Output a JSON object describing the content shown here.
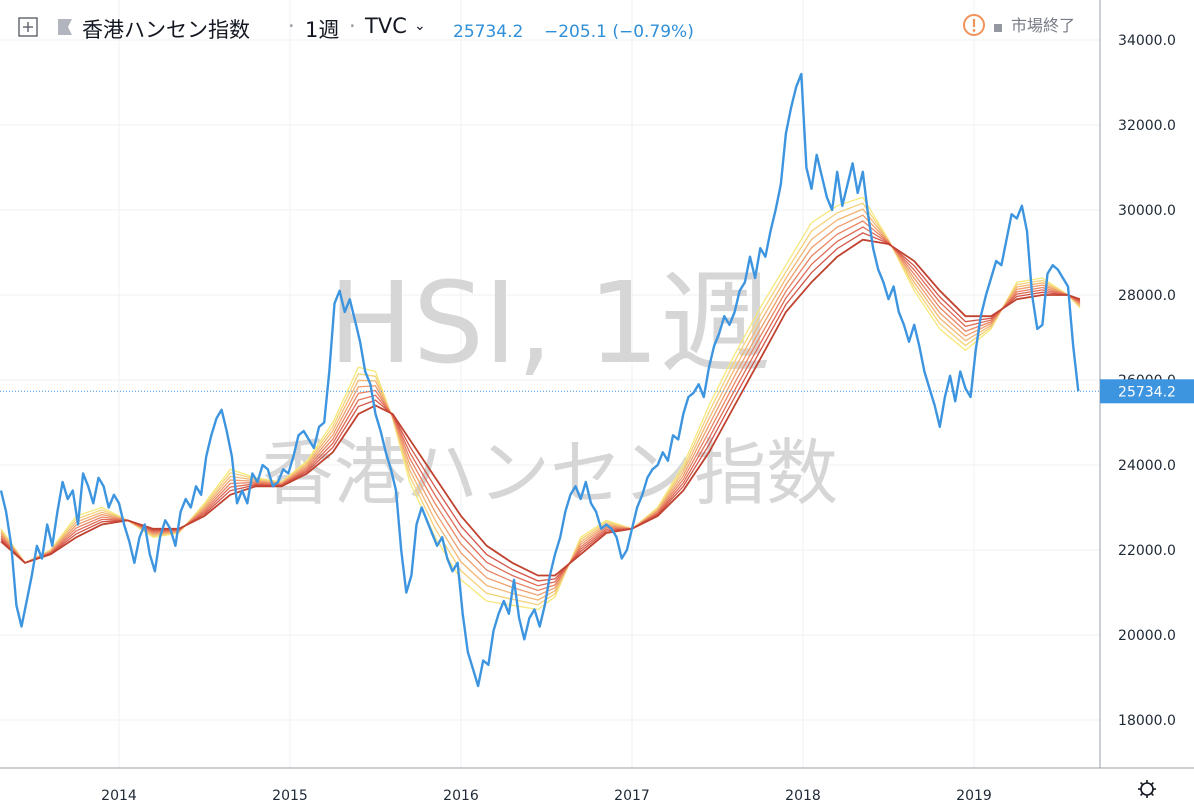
{
  "header": {
    "symbol_name": "香港ハンセン指数",
    "interval": "1週",
    "exchange": "TVC",
    "last_price": "25734.2",
    "change": "−205.1 (−0.79%)",
    "market_status": "市場終了",
    "colors": {
      "price": "#2f8fd9",
      "status_warn": "#f0925a"
    }
  },
  "watermark": {
    "line1": "HSI, 1週",
    "line2": "香港ハンセン指数"
  },
  "price_axis": {
    "labels": [
      "34000.0",
      "32000.0",
      "30000.0",
      "28000.0",
      "26000.0",
      "24000.0",
      "22000.0",
      "20000.0",
      "18000.0"
    ],
    "last_price_label": "25734.2"
  },
  "time_axis": {
    "labels": [
      "2014",
      "2015",
      "2016",
      "2017",
      "2018",
      "2019"
    ]
  },
  "chart_data": {
    "type": "line",
    "title": "",
    "xlabel": "",
    "ylabel": "",
    "ylim": [
      17000,
      35000
    ],
    "x_range": [
      "2013.31",
      "2019.66"
    ],
    "grid": true,
    "last_value": 25734.2,
    "series": [
      {
        "color": "#3d95e0",
        "points": [
          [
            2013.31,
            23400
          ],
          [
            2013.34,
            22900
          ],
          [
            2013.37,
            22100
          ],
          [
            2013.4,
            20700
          ],
          [
            2013.43,
            20200
          ],
          [
            2013.46,
            20800
          ],
          [
            2013.49,
            21400
          ],
          [
            2013.52,
            22100
          ],
          [
            2013.55,
            21800
          ],
          [
            2013.58,
            22600
          ],
          [
            2013.61,
            22100
          ],
          [
            2013.64,
            22900
          ],
          [
            2013.67,
            23600
          ],
          [
            2013.7,
            23200
          ],
          [
            2013.73,
            23400
          ],
          [
            2013.76,
            22600
          ],
          [
            2013.79,
            23800
          ],
          [
            2013.82,
            23500
          ],
          [
            2013.85,
            23100
          ],
          [
            2013.88,
            23700
          ],
          [
            2013.91,
            23500
          ],
          [
            2013.94,
            23000
          ],
          [
            2013.97,
            23300
          ],
          [
            2014.0,
            23100
          ],
          [
            2014.03,
            22600
          ],
          [
            2014.06,
            22200
          ],
          [
            2014.09,
            21700
          ],
          [
            2014.12,
            22300
          ],
          [
            2014.15,
            22600
          ],
          [
            2014.18,
            21900
          ],
          [
            2014.21,
            21500
          ],
          [
            2014.24,
            22300
          ],
          [
            2014.27,
            22700
          ],
          [
            2014.3,
            22500
          ],
          [
            2014.33,
            22100
          ],
          [
            2014.36,
            22900
          ],
          [
            2014.39,
            23200
          ],
          [
            2014.42,
            23000
          ],
          [
            2014.45,
            23500
          ],
          [
            2014.48,
            23300
          ],
          [
            2014.51,
            24200
          ],
          [
            2014.54,
            24700
          ],
          [
            2014.57,
            25100
          ],
          [
            2014.6,
            25300
          ],
          [
            2014.63,
            24800
          ],
          [
            2014.66,
            24200
          ],
          [
            2014.69,
            23100
          ],
          [
            2014.72,
            23400
          ],
          [
            2014.75,
            23100
          ],
          [
            2014.78,
            23800
          ],
          [
            2014.81,
            23600
          ],
          [
            2014.84,
            24000
          ],
          [
            2014.87,
            23900
          ],
          [
            2014.9,
            23500
          ],
          [
            2014.93,
            23600
          ],
          [
            2014.96,
            23900
          ],
          [
            2014.99,
            23800
          ],
          [
            2015.02,
            24200
          ],
          [
            2015.05,
            24700
          ],
          [
            2015.08,
            24800
          ],
          [
            2015.11,
            24600
          ],
          [
            2015.14,
            24400
          ],
          [
            2015.17,
            24900
          ],
          [
            2015.2,
            25000
          ],
          [
            2015.23,
            26200
          ],
          [
            2015.26,
            27800
          ],
          [
            2015.29,
            28100
          ],
          [
            2015.32,
            27600
          ],
          [
            2015.35,
            27900
          ],
          [
            2015.38,
            27400
          ],
          [
            2015.41,
            26900
          ],
          [
            2015.44,
            26200
          ],
          [
            2015.47,
            25900
          ],
          [
            2015.5,
            25200
          ],
          [
            2015.53,
            24800
          ],
          [
            2015.56,
            24300
          ],
          [
            2015.59,
            23900
          ],
          [
            2015.62,
            23400
          ],
          [
            2015.65,
            22000
          ],
          [
            2015.68,
            21000
          ],
          [
            2015.71,
            21400
          ],
          [
            2015.74,
            22600
          ],
          [
            2015.77,
            23000
          ],
          [
            2015.8,
            22700
          ],
          [
            2015.83,
            22400
          ],
          [
            2015.86,
            22100
          ],
          [
            2015.89,
            22300
          ],
          [
            2015.92,
            21800
          ],
          [
            2015.95,
            21500
          ],
          [
            2015.98,
            21700
          ],
          [
            2016.01,
            20500
          ],
          [
            2016.04,
            19600
          ],
          [
            2016.07,
            19200
          ],
          [
            2016.1,
            18800
          ],
          [
            2016.13,
            19400
          ],
          [
            2016.16,
            19300
          ],
          [
            2016.19,
            20100
          ],
          [
            2016.22,
            20500
          ],
          [
            2016.25,
            20800
          ],
          [
            2016.28,
            20500
          ],
          [
            2016.31,
            21300
          ],
          [
            2016.34,
            20400
          ],
          [
            2016.37,
            19900
          ],
          [
            2016.4,
            20400
          ],
          [
            2016.43,
            20600
          ],
          [
            2016.46,
            20200
          ],
          [
            2016.49,
            20700
          ],
          [
            2016.52,
            21400
          ],
          [
            2016.55,
            21900
          ],
          [
            2016.58,
            22300
          ],
          [
            2016.61,
            22900
          ],
          [
            2016.64,
            23300
          ],
          [
            2016.67,
            23500
          ],
          [
            2016.7,
            23200
          ],
          [
            2016.73,
            23600
          ],
          [
            2016.76,
            23100
          ],
          [
            2016.79,
            22900
          ],
          [
            2016.82,
            22500
          ],
          [
            2016.85,
            22600
          ],
          [
            2016.88,
            22500
          ],
          [
            2016.91,
            22300
          ],
          [
            2016.94,
            21800
          ],
          [
            2016.97,
            22000
          ],
          [
            2017.0,
            22500
          ],
          [
            2017.03,
            23000
          ],
          [
            2017.06,
            23300
          ],
          [
            2017.09,
            23700
          ],
          [
            2017.12,
            23900
          ],
          [
            2017.15,
            24000
          ],
          [
            2017.18,
            24300
          ],
          [
            2017.21,
            24100
          ],
          [
            2017.24,
            24700
          ],
          [
            2017.27,
            24600
          ],
          [
            2017.3,
            25200
          ],
          [
            2017.33,
            25600
          ],
          [
            2017.36,
            25700
          ],
          [
            2017.39,
            25900
          ],
          [
            2017.42,
            25600
          ],
          [
            2017.45,
            26300
          ],
          [
            2017.48,
            26800
          ],
          [
            2017.51,
            27100
          ],
          [
            2017.54,
            27500
          ],
          [
            2017.57,
            27300
          ],
          [
            2017.6,
            27600
          ],
          [
            2017.63,
            28100
          ],
          [
            2017.66,
            28300
          ],
          [
            2017.69,
            28900
          ],
          [
            2017.72,
            28400
          ],
          [
            2017.75,
            29100
          ],
          [
            2017.78,
            28900
          ],
          [
            2017.81,
            29500
          ],
          [
            2017.84,
            30000
          ],
          [
            2017.87,
            30600
          ],
          [
            2017.9,
            31800
          ],
          [
            2017.93,
            32400
          ],
          [
            2017.96,
            32900
          ],
          [
            2017.99,
            33200
          ],
          [
            2018.02,
            31000
          ],
          [
            2018.05,
            30500
          ],
          [
            2018.08,
            31300
          ],
          [
            2018.11,
            30800
          ],
          [
            2018.14,
            30300
          ],
          [
            2018.17,
            30000
          ],
          [
            2018.2,
            30900
          ],
          [
            2018.23,
            30100
          ],
          [
            2018.26,
            30600
          ],
          [
            2018.29,
            31100
          ],
          [
            2018.32,
            30400
          ],
          [
            2018.35,
            30900
          ],
          [
            2018.38,
            29900
          ],
          [
            2018.41,
            29100
          ],
          [
            2018.44,
            28600
          ],
          [
            2018.47,
            28300
          ],
          [
            2018.5,
            27900
          ],
          [
            2018.53,
            28200
          ],
          [
            2018.56,
            27600
          ],
          [
            2018.59,
            27300
          ],
          [
            2018.62,
            26900
          ],
          [
            2018.65,
            27300
          ],
          [
            2018.68,
            26800
          ],
          [
            2018.71,
            26200
          ],
          [
            2018.74,
            25800
          ],
          [
            2018.77,
            25400
          ],
          [
            2018.8,
            24900
          ],
          [
            2018.83,
            25600
          ],
          [
            2018.86,
            26100
          ],
          [
            2018.89,
            25500
          ],
          [
            2018.92,
            26200
          ],
          [
            2018.95,
            25800
          ],
          [
            2018.98,
            25600
          ],
          [
            2019.01,
            26700
          ],
          [
            2019.04,
            27500
          ],
          [
            2019.07,
            28000
          ],
          [
            2019.1,
            28400
          ],
          [
            2019.13,
            28800
          ],
          [
            2019.16,
            28700
          ],
          [
            2019.19,
            29300
          ],
          [
            2019.22,
            29900
          ],
          [
            2019.25,
            29800
          ],
          [
            2019.28,
            30100
          ],
          [
            2019.31,
            29500
          ],
          [
            2019.34,
            28000
          ],
          [
            2019.37,
            27200
          ],
          [
            2019.4,
            27300
          ],
          [
            2019.43,
            28500
          ],
          [
            2019.46,
            28700
          ],
          [
            2019.49,
            28600
          ],
          [
            2019.52,
            28400
          ],
          [
            2019.55,
            28200
          ],
          [
            2019.58,
            26800
          ],
          [
            2019.61,
            25734.2
          ]
        ]
      }
    ],
    "ribbon": {
      "colors": [
        "#f6e87a",
        "#f5d178",
        "#f2b774",
        "#ee9e6c",
        "#e98463",
        "#e06b57",
        "#d45548",
        "#c0422f"
      ],
      "offsets": [
        1.0,
        0.86,
        0.72,
        0.58,
        0.44,
        0.3,
        0.16,
        0.0
      ],
      "core": [
        [
          2013.31,
          22200
        ],
        [
          2013.45,
          21700
        ],
        [
          2013.6,
          21900
        ],
        [
          2013.75,
          22300
        ],
        [
          2013.9,
          22600
        ],
        [
          2014.05,
          22700
        ],
        [
          2014.2,
          22500
        ],
        [
          2014.35,
          22500
        ],
        [
          2014.5,
          22800
        ],
        [
          2014.65,
          23300
        ],
        [
          2014.8,
          23500
        ],
        [
          2014.95,
          23500
        ],
        [
          2015.1,
          23800
        ],
        [
          2015.25,
          24300
        ],
        [
          2015.4,
          25200
        ],
        [
          2015.5,
          25400
        ],
        [
          2015.6,
          25200
        ],
        [
          2015.7,
          24600
        ],
        [
          2015.85,
          23700
        ],
        [
          2016.0,
          22800
        ],
        [
          2016.15,
          22100
        ],
        [
          2016.3,
          21700
        ],
        [
          2016.45,
          21400
        ],
        [
          2016.55,
          21400
        ],
        [
          2016.7,
          21900
        ],
        [
          2016.85,
          22400
        ],
        [
          2017.0,
          22500
        ],
        [
          2017.15,
          22800
        ],
        [
          2017.3,
          23400
        ],
        [
          2017.45,
          24300
        ],
        [
          2017.6,
          25400
        ],
        [
          2017.75,
          26500
        ],
        [
          2017.9,
          27600
        ],
        [
          2018.05,
          28300
        ],
        [
          2018.2,
          28900
        ],
        [
          2018.35,
          29300
        ],
        [
          2018.5,
          29200
        ],
        [
          2018.65,
          28800
        ],
        [
          2018.8,
          28100
        ],
        [
          2018.95,
          27500
        ],
        [
          2019.1,
          27500
        ],
        [
          2019.25,
          27900
        ],
        [
          2019.4,
          28000
        ],
        [
          2019.55,
          28000
        ],
        [
          2019.62,
          27900
        ]
      ],
      "fast": [
        [
          2013.31,
          22500
        ],
        [
          2013.45,
          21700
        ],
        [
          2013.6,
          22000
        ],
        [
          2013.75,
          22800
        ],
        [
          2013.9,
          23000
        ],
        [
          2014.05,
          22700
        ],
        [
          2014.2,
          22300
        ],
        [
          2014.35,
          22400
        ],
        [
          2014.5,
          23100
        ],
        [
          2014.65,
          23900
        ],
        [
          2014.8,
          23700
        ],
        [
          2014.95,
          23600
        ],
        [
          2015.1,
          24100
        ],
        [
          2015.25,
          25000
        ],
        [
          2015.4,
          26300
        ],
        [
          2015.5,
          26200
        ],
        [
          2015.6,
          25100
        ],
        [
          2015.7,
          23600
        ],
        [
          2015.85,
          22300
        ],
        [
          2016.0,
          21300
        ],
        [
          2016.15,
          20800
        ],
        [
          2016.3,
          20700
        ],
        [
          2016.45,
          20600
        ],
        [
          2016.55,
          20900
        ],
        [
          2016.7,
          22300
        ],
        [
          2016.85,
          22700
        ],
        [
          2017.0,
          22500
        ],
        [
          2017.15,
          23000
        ],
        [
          2017.3,
          24000
        ],
        [
          2017.45,
          25400
        ],
        [
          2017.6,
          26600
        ],
        [
          2017.75,
          27700
        ],
        [
          2017.9,
          28700
        ],
        [
          2018.05,
          29700
        ],
        [
          2018.2,
          30100
        ],
        [
          2018.35,
          30300
        ],
        [
          2018.5,
          29300
        ],
        [
          2018.65,
          28100
        ],
        [
          2018.8,
          27200
        ],
        [
          2018.95,
          26700
        ],
        [
          2019.1,
          27200
        ],
        [
          2019.25,
          28300
        ],
        [
          2019.4,
          28400
        ],
        [
          2019.55,
          28000
        ],
        [
          2019.62,
          27700
        ]
      ]
    }
  }
}
